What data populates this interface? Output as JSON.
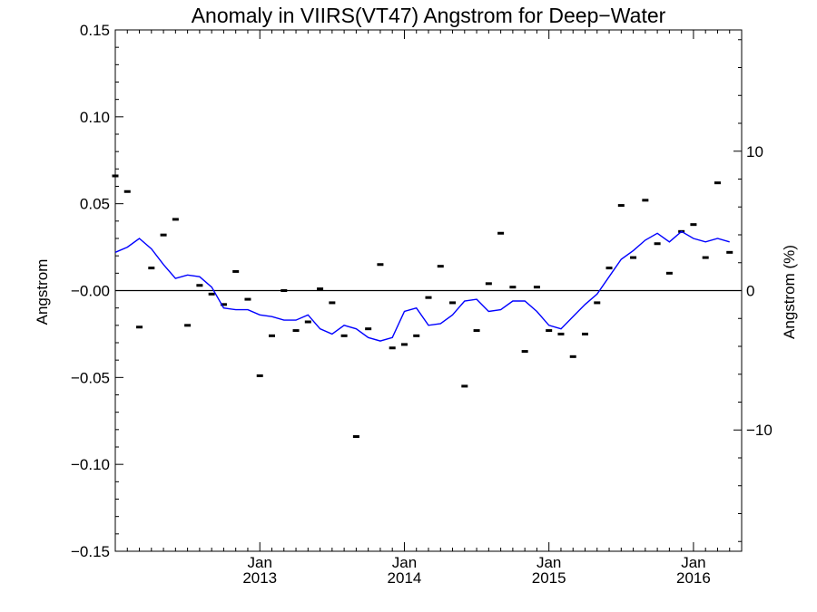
{
  "chart_data": {
    "type": "line",
    "title": "Anomaly in VIIRS(VT47) Angstrom for Deep−Water",
    "ylabel_left": "Angstrom",
    "ylabel_right": "Angstrom (%)",
    "x_axis": {
      "type": "date",
      "range": [
        "2012-01",
        "2016-05"
      ]
    },
    "ylim": [
      -0.15,
      0.15
    ],
    "y2lim": [
      -18.7,
      18.7
    ],
    "y_ticks": [
      {
        "v": 0.15,
        "label": "0.15"
      },
      {
        "v": 0.1,
        "label": "0.10"
      },
      {
        "v": 0.05,
        "label": "0.05"
      },
      {
        "v": 0.0,
        "label": "−0.00"
      },
      {
        "v": -0.05,
        "label": "−0.05"
      },
      {
        "v": -0.1,
        "label": "−0.10"
      },
      {
        "v": -0.15,
        "label": "−0.15"
      }
    ],
    "y2_ticks": [
      {
        "v": 10,
        "label": "10"
      },
      {
        "v": 0,
        "label": "0"
      },
      {
        "v": -10,
        "label": "−10"
      }
    ],
    "x_ticks": [
      {
        "date": "2013-01",
        "line1": "Jan",
        "line2": "2013"
      },
      {
        "date": "2014-01",
        "line1": "Jan",
        "line2": "2014"
      },
      {
        "date": "2015-01",
        "line1": "Jan",
        "line2": "2015"
      },
      {
        "date": "2016-01",
        "line1": "Jan",
        "line2": "2016"
      }
    ],
    "zero_line": true,
    "series": [
      {
        "style": "markers",
        "color": "#000000",
        "points": [
          [
            "2012-01",
            0.066
          ],
          [
            "2012-02",
            0.057
          ],
          [
            "2012-03",
            -0.021
          ],
          [
            "2012-04",
            0.013
          ],
          [
            "2012-05",
            0.032
          ],
          [
            "2012-06",
            0.041
          ],
          [
            "2012-07",
            -0.02
          ],
          [
            "2012-08",
            0.003
          ],
          [
            "2012-09",
            -0.002
          ],
          [
            "2012-10",
            -0.008
          ],
          [
            "2012-11",
            0.011
          ],
          [
            "2012-12",
            -0.005
          ],
          [
            "2013-01",
            -0.049
          ],
          [
            "2013-02",
            -0.026
          ],
          [
            "2013-03",
            0.0
          ],
          [
            "2013-04",
            -0.023
          ],
          [
            "2013-05",
            -0.018
          ],
          [
            "2013-06",
            0.001
          ],
          [
            "2013-07",
            -0.007
          ],
          [
            "2013-08",
            -0.026
          ],
          [
            "2013-09",
            -0.084
          ],
          [
            "2013-10",
            -0.022
          ],
          [
            "2013-11",
            0.015
          ],
          [
            "2013-12",
            -0.033
          ],
          [
            "2014-01",
            -0.031
          ],
          [
            "2014-02",
            -0.026
          ],
          [
            "2014-03",
            -0.004
          ],
          [
            "2014-04",
            0.014
          ],
          [
            "2014-05",
            -0.007
          ],
          [
            "2014-06",
            -0.055
          ],
          [
            "2014-07",
            -0.023
          ],
          [
            "2014-08",
            0.004
          ],
          [
            "2014-09",
            0.033
          ],
          [
            "2014-10",
            0.002
          ],
          [
            "2014-11",
            -0.035
          ],
          [
            "2014-12",
            0.002
          ],
          [
            "2015-01",
            -0.023
          ],
          [
            "2015-02",
            -0.025
          ],
          [
            "2015-03",
            -0.038
          ],
          [
            "2015-04",
            -0.025
          ],
          [
            "2015-05",
            -0.007
          ],
          [
            "2015-06",
            0.013
          ],
          [
            "2015-07",
            0.049
          ],
          [
            "2015-08",
            0.019
          ],
          [
            "2015-09",
            0.052
          ],
          [
            "2015-10",
            0.027
          ],
          [
            "2015-11",
            0.01
          ],
          [
            "2015-12",
            0.034
          ],
          [
            "2016-01",
            0.038
          ],
          [
            "2016-02",
            0.019
          ],
          [
            "2016-03",
            0.062
          ],
          [
            "2016-04",
            0.022
          ]
        ]
      },
      {
        "style": "line",
        "color": "#0000ff",
        "points": [
          [
            "2012-01",
            0.022
          ],
          [
            "2012-02",
            0.025
          ],
          [
            "2012-03",
            0.03
          ],
          [
            "2012-04",
            0.024
          ],
          [
            "2012-05",
            0.015
          ],
          [
            "2012-06",
            0.007
          ],
          [
            "2012-07",
            0.009
          ],
          [
            "2012-08",
            0.008
          ],
          [
            "2012-09",
            0.002
          ],
          [
            "2012-10",
            -0.01
          ],
          [
            "2012-11",
            -0.011
          ],
          [
            "2012-12",
            -0.011
          ],
          [
            "2013-01",
            -0.014
          ],
          [
            "2013-02",
            -0.015
          ],
          [
            "2013-03",
            -0.017
          ],
          [
            "2013-04",
            -0.017
          ],
          [
            "2013-05",
            -0.014
          ],
          [
            "2013-06",
            -0.022
          ],
          [
            "2013-07",
            -0.025
          ],
          [
            "2013-08",
            -0.02
          ],
          [
            "2013-09",
            -0.022
          ],
          [
            "2013-10",
            -0.027
          ],
          [
            "2013-11",
            -0.029
          ],
          [
            "2013-12",
            -0.027
          ],
          [
            "2014-01",
            -0.012
          ],
          [
            "2014-02",
            -0.01
          ],
          [
            "2014-03",
            -0.02
          ],
          [
            "2014-04",
            -0.019
          ],
          [
            "2014-05",
            -0.014
          ],
          [
            "2014-06",
            -0.006
          ],
          [
            "2014-07",
            -0.005
          ],
          [
            "2014-08",
            -0.012
          ],
          [
            "2014-09",
            -0.011
          ],
          [
            "2014-10",
            -0.006
          ],
          [
            "2014-11",
            -0.006
          ],
          [
            "2014-12",
            -0.012
          ],
          [
            "2015-01",
            -0.02
          ],
          [
            "2015-02",
            -0.022
          ],
          [
            "2015-03",
            -0.015
          ],
          [
            "2015-04",
            -0.008
          ],
          [
            "2015-05",
            -0.002
          ],
          [
            "2015-06",
            0.008
          ],
          [
            "2015-07",
            0.018
          ],
          [
            "2015-08",
            0.023
          ],
          [
            "2015-09",
            0.029
          ],
          [
            "2015-10",
            0.033
          ],
          [
            "2015-11",
            0.028
          ],
          [
            "2015-12",
            0.034
          ],
          [
            "2016-01",
            0.03
          ],
          [
            "2016-02",
            0.028
          ],
          [
            "2016-03",
            0.03
          ],
          [
            "2016-04",
            0.028
          ]
        ]
      }
    ]
  }
}
